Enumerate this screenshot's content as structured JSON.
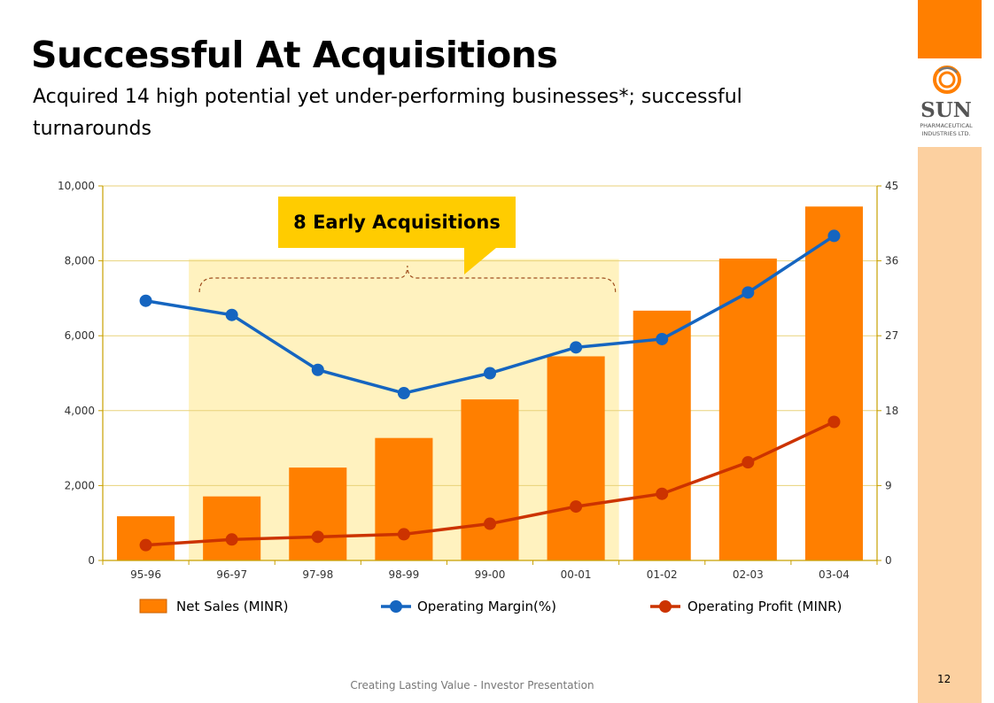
{
  "slide": {
    "title": "Successful At Acquisitions",
    "subtitle": "Acquired 14 high potential yet under-performing businesses*; successful turnarounds",
    "callout": "8 Early Acquisitions",
    "footer": "Creating Lasting Value - Investor Presentation",
    "page_number": "12",
    "logo": {
      "icon": "sun-logo-icon",
      "name": "SUN",
      "line1": "PHARMACEUTICAL",
      "line2": "INDUSTRIES LTD."
    }
  },
  "colors": {
    "bar": "#ff7f00",
    "margin_line": "#1565c0",
    "profit_line": "#cc3300",
    "highlight": "#fff2bf",
    "axis": "#c8a000",
    "accent": "#ff7f00"
  },
  "chart_data": {
    "type": "bar",
    "categories": [
      "95-96",
      "96-97",
      "97-98",
      "98-99",
      "99-00",
      "00-01",
      "01-02",
      "02-03",
      "03-04"
    ],
    "y_left": {
      "range": [
        0,
        10000
      ],
      "ticks": [
        "0",
        "2,000",
        "4,000",
        "6,000",
        "8,000",
        "10,000"
      ]
    },
    "y_right": {
      "range": [
        0,
        45
      ],
      "ticks": [
        "0",
        "9",
        "18",
        "27",
        "36",
        "45"
      ]
    },
    "grid": true,
    "legend_position": "bottom",
    "highlight": {
      "from": "96-97",
      "to": "00-01",
      "label": "8 Early Acquisitions"
    },
    "series": [
      {
        "name": "Net Sales (MINR)",
        "type": "bar",
        "axis": "left",
        "values": [
          1180,
          1710,
          2480,
          3270,
          4300,
          5450,
          6670,
          8060,
          9450
        ]
      },
      {
        "name": "Operating Margin(%)",
        "type": "line",
        "axis": "right",
        "values": [
          31.2,
          29.5,
          22.9,
          20.1,
          22.5,
          25.6,
          26.6,
          32.2,
          39.0
        ]
      },
      {
        "name": "Operating Profit (MINR)",
        "type": "line",
        "axis": "left",
        "values": [
          410,
          560,
          630,
          700,
          980,
          1440,
          1780,
          2620,
          3700
        ]
      }
    ]
  }
}
